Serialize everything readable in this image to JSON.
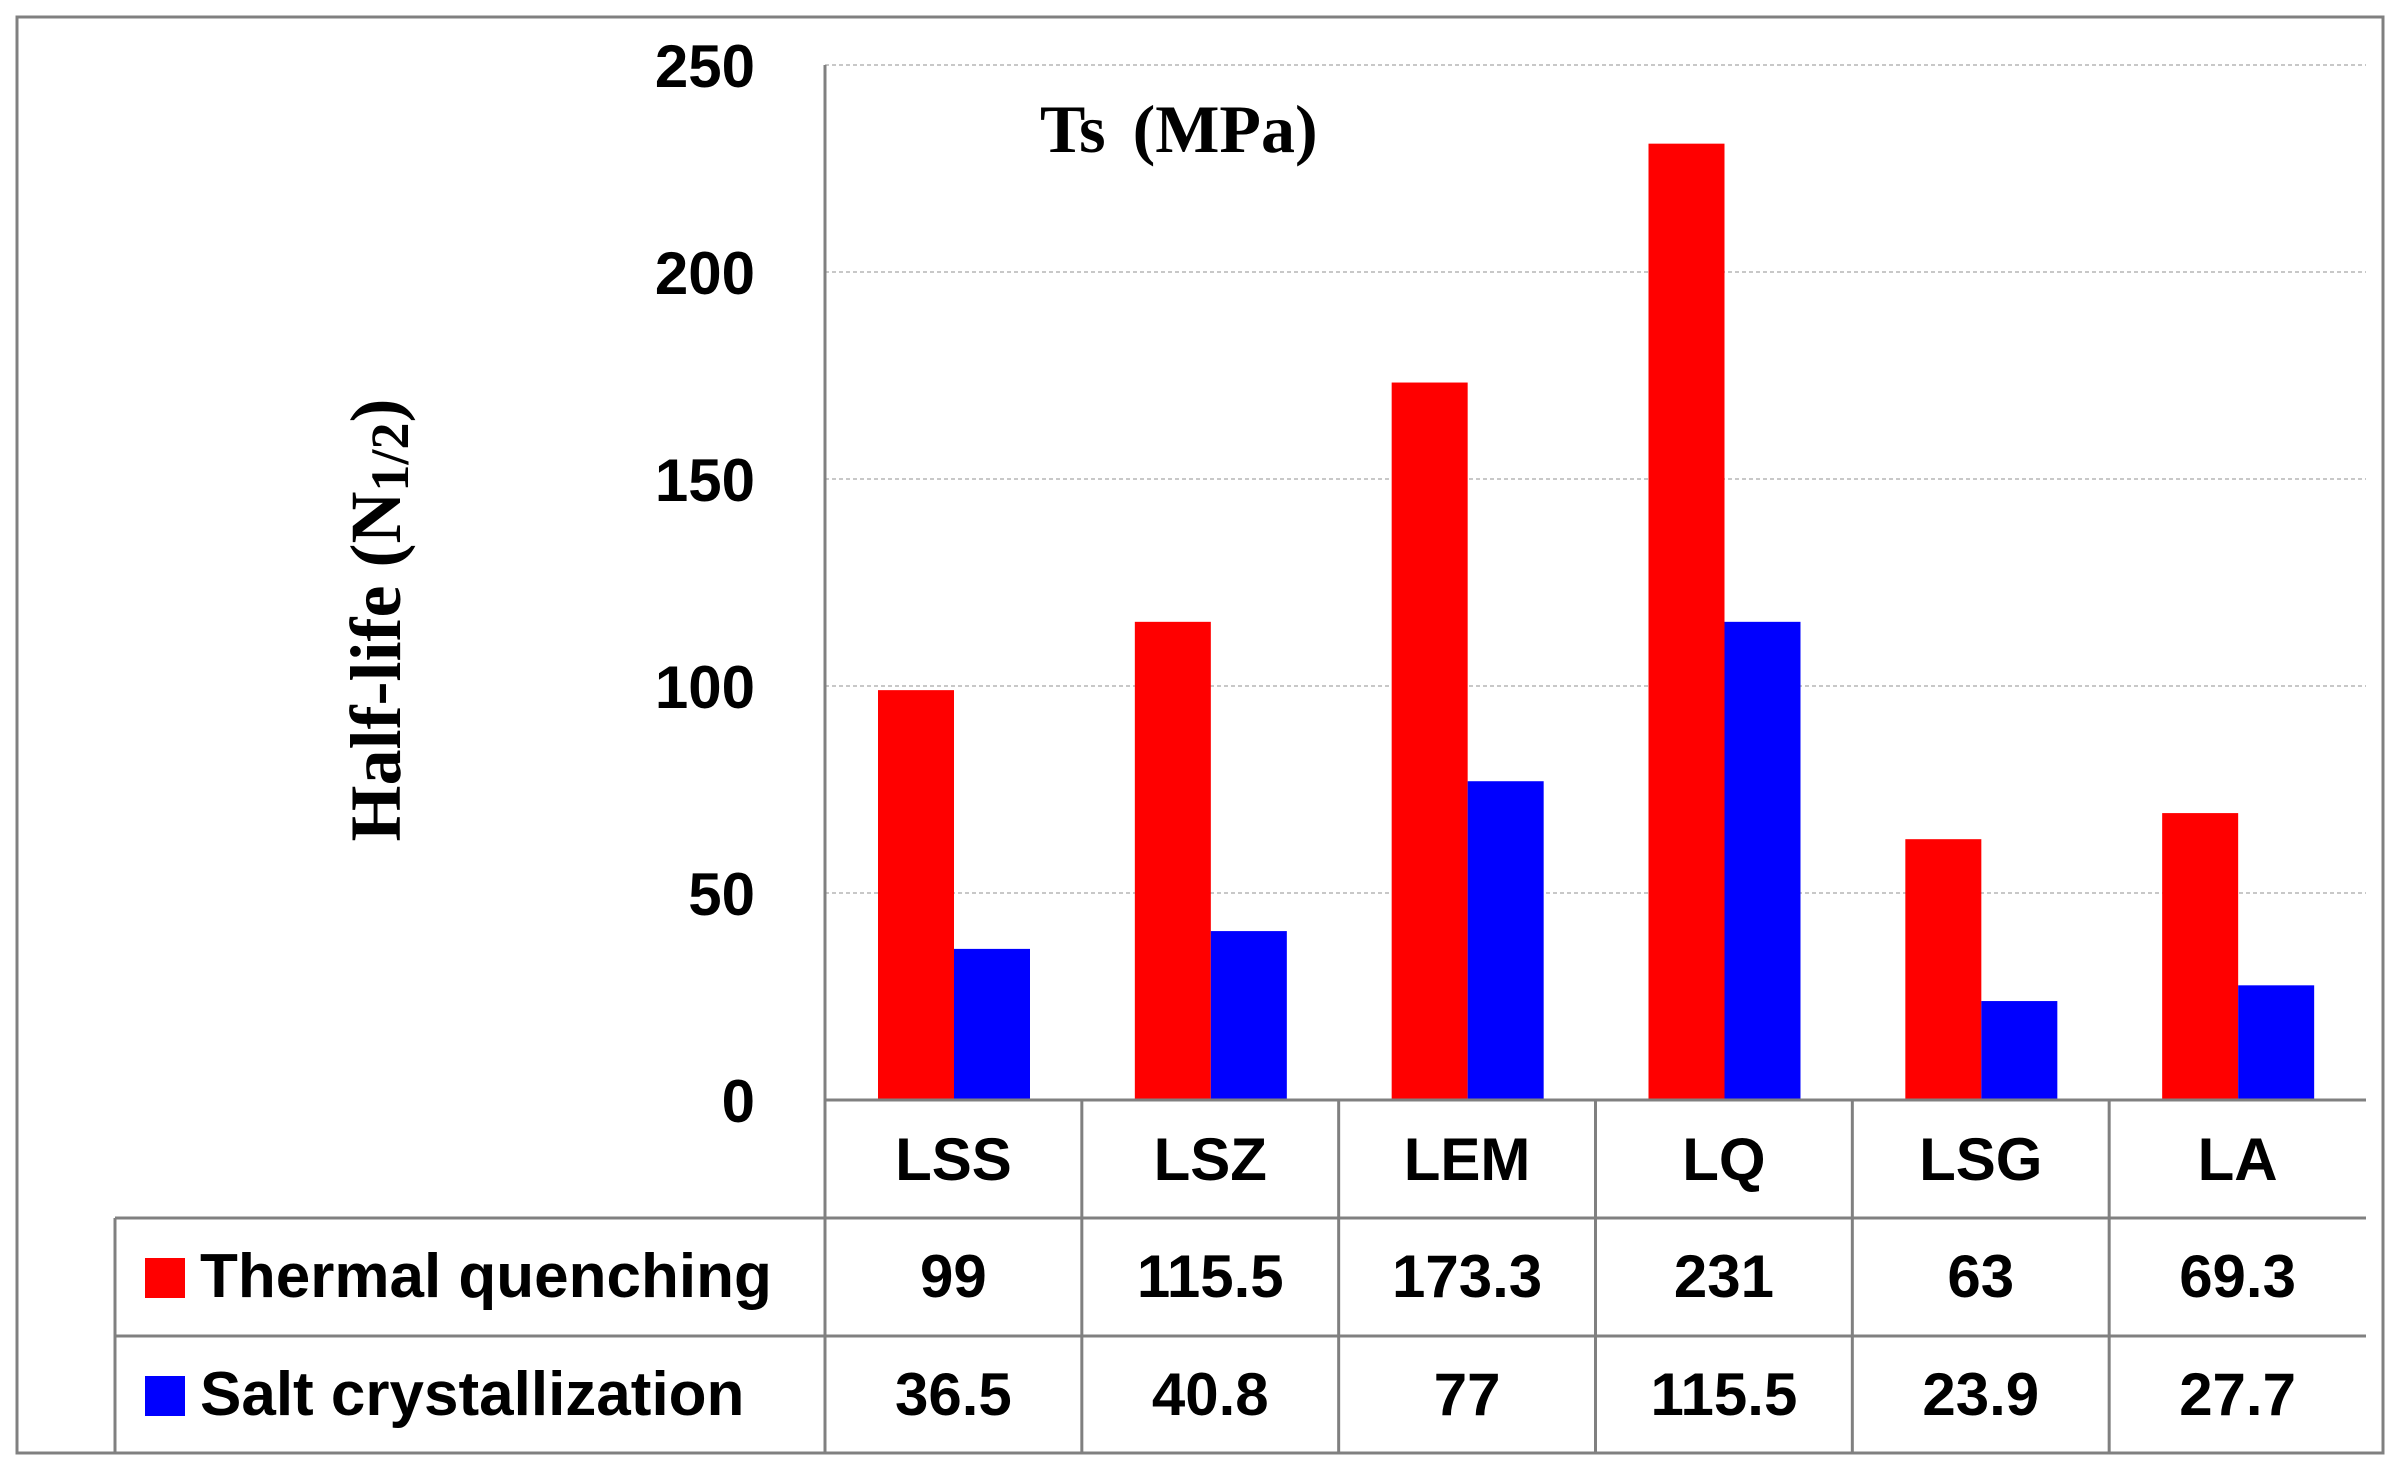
{
  "chart_data": {
    "type": "bar",
    "title_main": "Ts",
    "title_unit": "(MPa)",
    "ylabel_main": "Half-life (N",
    "ylabel_sub": "1/2",
    "ylabel_close": ")",
    "xlabel": "",
    "ylim": [
      0,
      250
    ],
    "yticks": [
      0,
      50,
      100,
      150,
      200,
      250
    ],
    "grid": true,
    "legend": "data-table",
    "categories": [
      "LSS",
      "LSZ",
      "LEM",
      "LQ",
      "LSG",
      "LA"
    ],
    "series": [
      {
        "name": "Thermal quenching",
        "color": "#ff0000",
        "values": [
          99,
          115.5,
          173.3,
          231,
          63,
          69.3
        ],
        "labels": [
          "99",
          "115.5",
          "173.3",
          "231",
          "63",
          "69.3"
        ]
      },
      {
        "name": "Salt crystallization",
        "color": "#0000ff",
        "values": [
          36.5,
          40.8,
          77,
          115.5,
          23.9,
          27.7
        ],
        "labels": [
          "36.5",
          "40.8",
          "77",
          "115.5",
          "23.9",
          "27.7"
        ]
      }
    ]
  }
}
